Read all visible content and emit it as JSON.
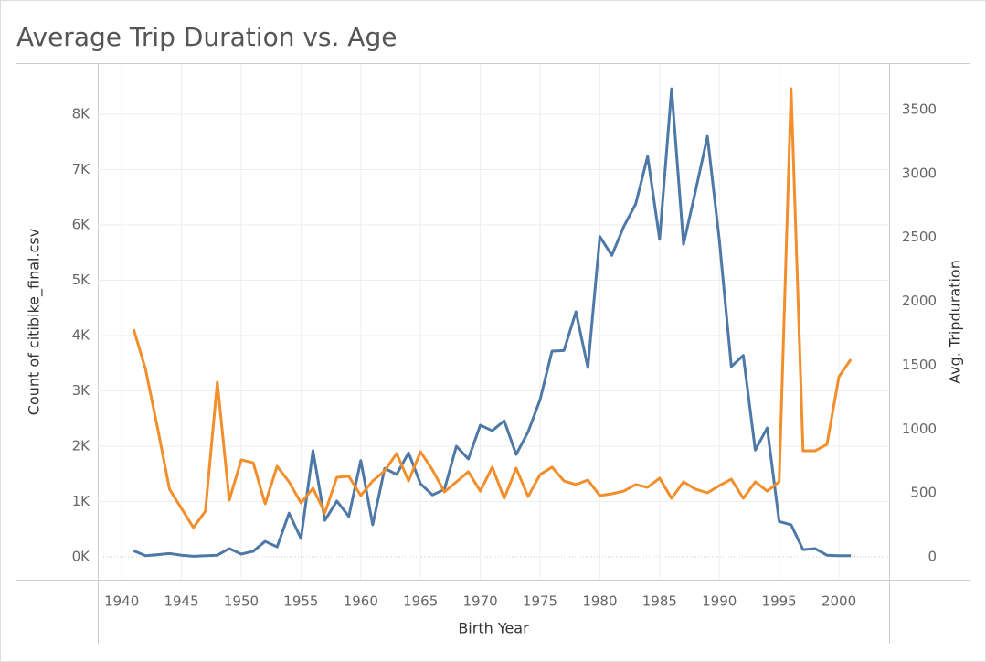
{
  "chart_data": {
    "type": "line",
    "title": "Average Trip Duration vs. Age",
    "x_label": "Birth Year",
    "y_label": "Count of citibike_final.csv",
    "y2_label": "Avg. Tripduration",
    "x": [
      1941,
      1942,
      1943,
      1944,
      1945,
      1946,
      1947,
      1948,
      1949,
      1950,
      1951,
      1952,
      1953,
      1954,
      1955,
      1956,
      1957,
      1958,
      1959,
      1960,
      1961,
      1962,
      1963,
      1964,
      1965,
      1966,
      1967,
      1968,
      1969,
      1970,
      1971,
      1972,
      1973,
      1974,
      1975,
      1976,
      1977,
      1978,
      1979,
      1980,
      1981,
      1982,
      1983,
      1984,
      1985,
      1986,
      1987,
      1988,
      1989,
      1990,
      1991,
      1992,
      1993,
      1994,
      1995,
      1996,
      1997,
      1998,
      1999,
      2000,
      2001
    ],
    "series": [
      {
        "name": "Count of citibike_final.csv",
        "color": "#4e79a7",
        "values": [
          110,
          20,
          40,
          60,
          30,
          10,
          20,
          30,
          150,
          50,
          100,
          280,
          180,
          790,
          330,
          1920,
          660,
          1010,
          730,
          1740,
          580,
          1600,
          1490,
          1880,
          1320,
          1120,
          1220,
          2000,
          1770,
          2380,
          2280,
          2460,
          1850,
          2260,
          2840,
          3720,
          3730,
          4430,
          3420,
          5790,
          5450,
          5970,
          6380,
          7240,
          5740,
          8460,
          5650,
          6610,
          7600,
          5720,
          3440,
          3640,
          1930,
          2330,
          640,
          580,
          130,
          150,
          30,
          20,
          20
        ]
      },
      {
        "name": "Avg. Tripduration",
        "color": "#f28e2b",
        "axis": "y2",
        "values": [
          1782,
          1467,
          1009,
          530,
          379,
          229,
          358,
          1367,
          444,
          759,
          737,
          415,
          709,
          587,
          422,
          537,
          344,
          623,
          630,
          480,
          594,
          673,
          809,
          594,
          823,
          680,
          508,
          587,
          666,
          515,
          702,
          458,
          694,
          472,
          644,
          702,
          594,
          566,
          601,
          480,
          494,
          515,
          566,
          544,
          616,
          458,
          587,
          530,
          501,
          558,
          608,
          458,
          587,
          515,
          587,
          3665,
          830,
          830,
          880,
          1410,
          1546
        ]
      }
    ],
    "xlim": [
      1938,
      2004.2
    ],
    "xticks": [
      1940,
      1945,
      1950,
      1955,
      1960,
      1965,
      1970,
      1975,
      1980,
      1985,
      1990,
      1995,
      2000
    ],
    "ylim": [
      -413,
      8909
    ],
    "yticks": [
      {
        "value": 0,
        "label": "0K"
      },
      {
        "value": 1000,
        "label": "1K"
      },
      {
        "value": 2000,
        "label": "2K"
      },
      {
        "value": 3000,
        "label": "3K"
      },
      {
        "value": 4000,
        "label": "4K"
      },
      {
        "value": 5000,
        "label": "5K"
      },
      {
        "value": 6000,
        "label": "6K"
      },
      {
        "value": 7000,
        "label": "7K"
      },
      {
        "value": 8000,
        "label": "8K"
      }
    ],
    "y2lim": [
      -179,
      3858
    ],
    "y2ticks": [
      0,
      500,
      1000,
      1500,
      2000,
      2500,
      3000,
      3500
    ],
    "grid": true
  }
}
